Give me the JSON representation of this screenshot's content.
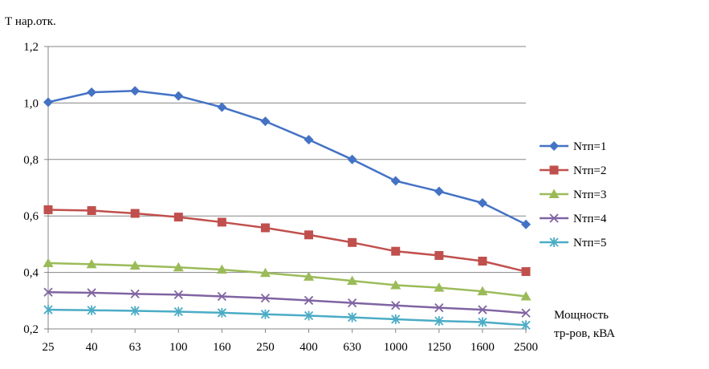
{
  "chart_data": {
    "type": "line",
    "title": "",
    "ylabel": "Т нар.отк.",
    "xlabel_lines": [
      "Мощность",
      "тр-ров, кВА"
    ],
    "categories": [
      "25",
      "40",
      "63",
      "100",
      "160",
      "250",
      "400",
      "630",
      "1000",
      "1250",
      "1600",
      "2500"
    ],
    "ylim": [
      0.2,
      1.2
    ],
    "yticks": [
      "0,2",
      "0,4",
      "0,6",
      "0,8",
      "1,0",
      "1,2"
    ],
    "grid": true,
    "legend_position": "right",
    "series": [
      {
        "name": "Nтп=1",
        "color": "#4472C4",
        "marker": "diamond",
        "values": [
          1.003,
          1.038,
          1.043,
          1.025,
          0.985,
          0.935,
          0.87,
          0.8,
          0.724,
          0.687,
          0.646,
          0.57
        ]
      },
      {
        "name": "Nтп=2",
        "color": "#C0504D",
        "marker": "square",
        "values": [
          0.622,
          0.619,
          0.609,
          0.596,
          0.578,
          0.558,
          0.533,
          0.506,
          0.475,
          0.46,
          0.44,
          0.403
        ]
      },
      {
        "name": "Nтп=3",
        "color": "#9BBB59",
        "marker": "triangle",
        "values": [
          0.433,
          0.429,
          0.424,
          0.418,
          0.41,
          0.398,
          0.385,
          0.37,
          0.355,
          0.346,
          0.333,
          0.315
        ]
      },
      {
        "name": "Nтп=4",
        "color": "#8064A2",
        "marker": "x",
        "values": [
          0.33,
          0.328,
          0.324,
          0.321,
          0.315,
          0.309,
          0.301,
          0.292,
          0.283,
          0.275,
          0.268,
          0.256
        ]
      },
      {
        "name": "Nтп=5",
        "color": "#4BACC6",
        "marker": "asterisk",
        "values": [
          0.268,
          0.266,
          0.264,
          0.261,
          0.257,
          0.252,
          0.247,
          0.241,
          0.234,
          0.228,
          0.224,
          0.213
        ]
      }
    ]
  }
}
